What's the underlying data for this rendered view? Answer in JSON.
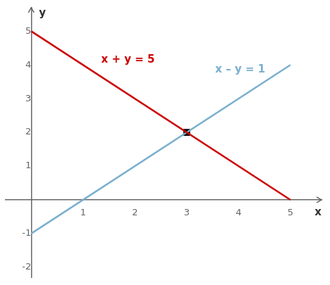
{
  "chart_data": {
    "type": "line",
    "xlabel": "x",
    "ylabel": "y",
    "xlim": [
      -0.5,
      5.6
    ],
    "ylim": [
      -2.3,
      5.7
    ],
    "xticks": [
      1,
      2,
      3,
      4,
      5
    ],
    "yticks": [
      -2,
      -1,
      1,
      2,
      3,
      4,
      5
    ],
    "grid": false,
    "series": [
      {
        "x": [
          0,
          5
        ],
        "values": [
          5,
          0
        ],
        "color": "#cc0000"
      },
      {
        "x": [
          0,
          5
        ],
        "values": [
          -1,
          4
        ],
        "color": "#7aafcf"
      },
      {
        "x": [
          3
        ],
        "values": [
          2
        ],
        "color": "#000000",
        "type": "scatter",
        "marker": "square"
      }
    ],
    "annotations": [
      {
        "text": "x + y = 5",
        "x": 1.35,
        "y": 4.15,
        "color": "#cc0000"
      },
      {
        "text": "x – y = 1",
        "x": 3.55,
        "y": 3.85,
        "color": "#7aafcf"
      }
    ]
  }
}
